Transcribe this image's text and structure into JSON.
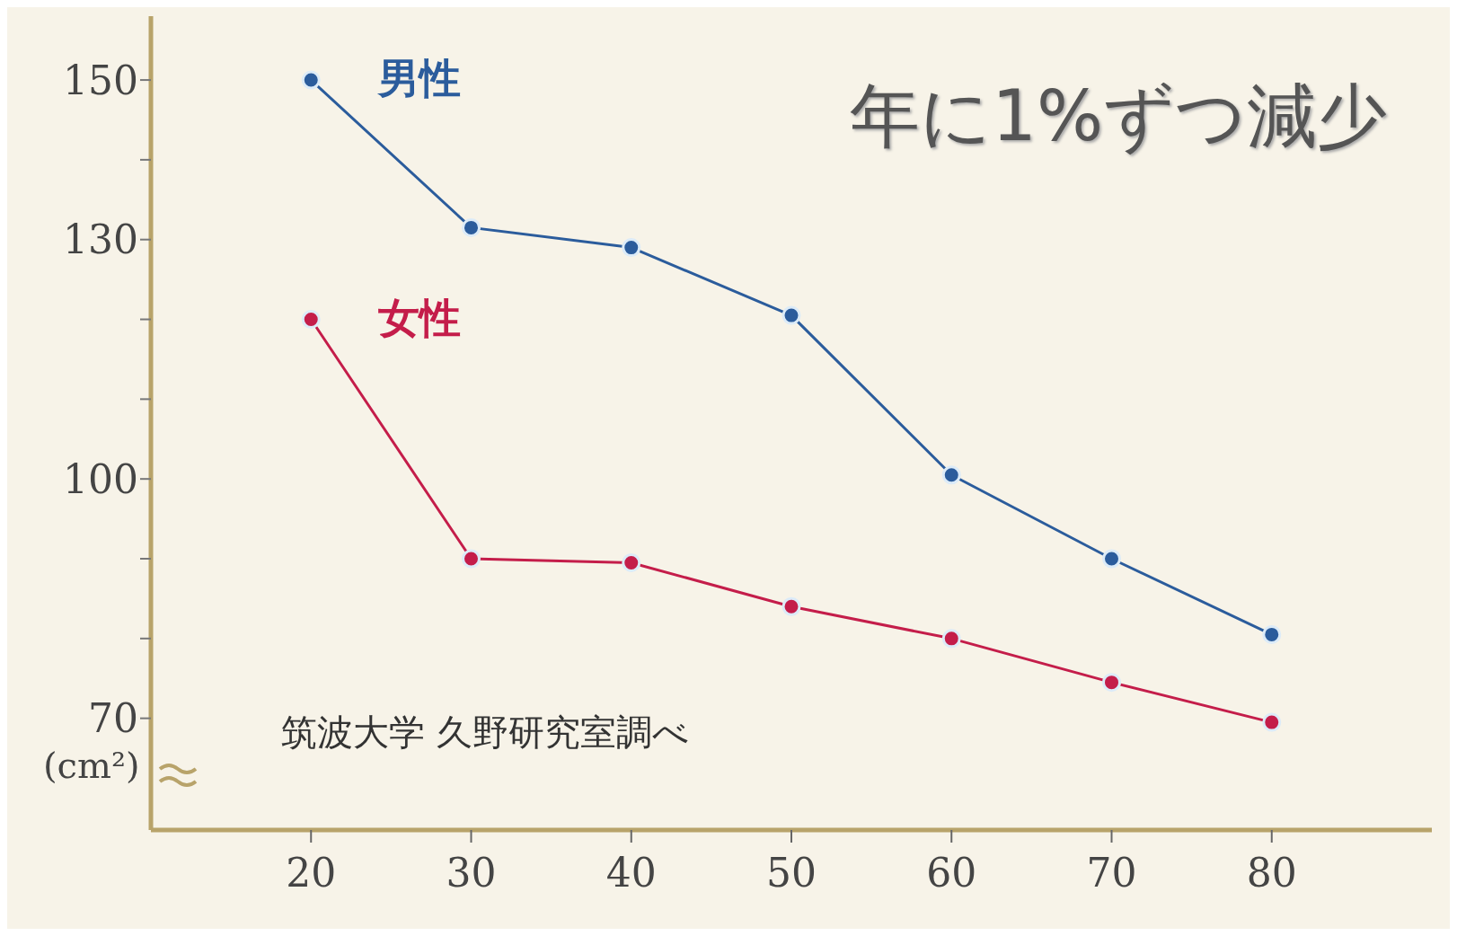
{
  "chart_data": {
    "type": "line",
    "title": "年に1%ずつ減少",
    "ylabel": "(cm²)",
    "x": [
      20,
      30,
      40,
      50,
      60,
      70,
      80
    ],
    "series": [
      {
        "name": "男性",
        "color": "#2b5c9c",
        "values": [
          150,
          131.5,
          129,
          120.5,
          100.5,
          90,
          80.5
        ]
      },
      {
        "name": "女性",
        "color": "#c41d4a",
        "values": [
          120,
          90,
          89.5,
          84,
          80,
          74.5,
          69.5
        ]
      }
    ],
    "xlim": [
      10,
      90
    ],
    "xticks": [
      20,
      30,
      40,
      50,
      60,
      70,
      80
    ],
    "ylim": [
      56,
      158
    ],
    "yticks": [
      {
        "value": 70,
        "label": "70"
      },
      {
        "value": 80,
        "label": null
      },
      {
        "value": 90,
        "label": null
      },
      {
        "value": 100,
        "label": "100"
      },
      {
        "value": 110,
        "label": null
      },
      {
        "value": 120,
        "label": null
      },
      {
        "value": 130,
        "label": "130"
      },
      {
        "value": 140,
        "label": null
      },
      {
        "value": 150,
        "label": "150"
      }
    ],
    "marker": "circle",
    "line_style": "solid",
    "grid": false,
    "legend": false,
    "annotations": [
      "筑波大学 久野研究室調べ"
    ]
  }
}
